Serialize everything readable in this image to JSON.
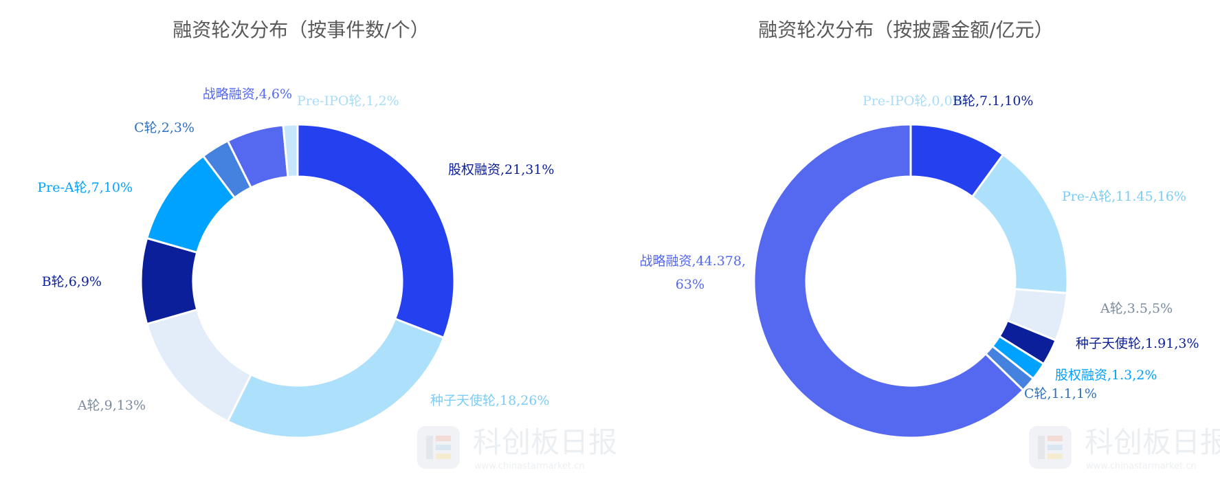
{
  "chart_data": [
    {
      "type": "pie",
      "title": "融资轮次分布（按事件数/个）",
      "categories": [
        "股权融资",
        "种子天使轮",
        "A轮",
        "B轮",
        "Pre-A轮",
        "C轮",
        "战略融资",
        "Pre-IPO轮"
      ],
      "values": [
        21,
        18,
        9,
        6,
        7,
        2,
        4,
        1
      ],
      "labels": [
        "股权融资,21,31%",
        "种子天使轮,18,26%",
        "A轮,9,13%",
        "B轮,6,9%",
        "Pre-A轮,7,10%",
        "C轮,2,3%",
        "战略融资,4,6%",
        "Pre-IPO轮,1,2%"
      ],
      "colors": [
        "#2540ee",
        "#ade0fb",
        "#e3edf9",
        "#0b1f9a",
        "#00a2ff",
        "#4581df",
        "#5468f0",
        "#c6e6fb"
      ],
      "label_colors": [
        "#0b1f9a",
        "#7cccf5",
        "#7a8b9e",
        "#0b1f9a",
        "#00a2ff",
        "#2e6fc0",
        "#5468f0",
        "#a8dcf7"
      ]
    },
    {
      "type": "pie",
      "title": "融资轮次分布（按披露金额/亿元）",
      "categories": [
        "Pre-IPO轮",
        "B轮",
        "Pre-A轮",
        "A轮",
        "种子天使轮",
        "股权融资",
        "C轮",
        "战略融资"
      ],
      "values": [
        0,
        7.1,
        11.45,
        3.5,
        1.91,
        1.3,
        1.1,
        44.378
      ],
      "labels": [
        "Pre-IPO轮,0,0%",
        "B轮,7.1,10%",
        "Pre-A轮,11.45,16%",
        "A轮,3.5,5%",
        "种子天使轮,1.91,3%",
        "股权融资,1.3,2%",
        "C轮,1.1,1%",
        "战略融资,44.378,|63%"
      ],
      "colors": [
        "#c6e6fb",
        "#2540ee",
        "#ade0fb",
        "#e3edf9",
        "#0b1f9a",
        "#00a2ff",
        "#4581df",
        "#5468f0"
      ],
      "label_colors": [
        "#a8dcf7",
        "#0b1f9a",
        "#7cccf5",
        "#7a8b9e",
        "#0b1f9a",
        "#00a2ff",
        "#2e6fc0",
        "#5468f0"
      ]
    }
  ],
  "watermark": {
    "brand": "科创板日报",
    "url": "www.chinastarmarket.cn"
  }
}
